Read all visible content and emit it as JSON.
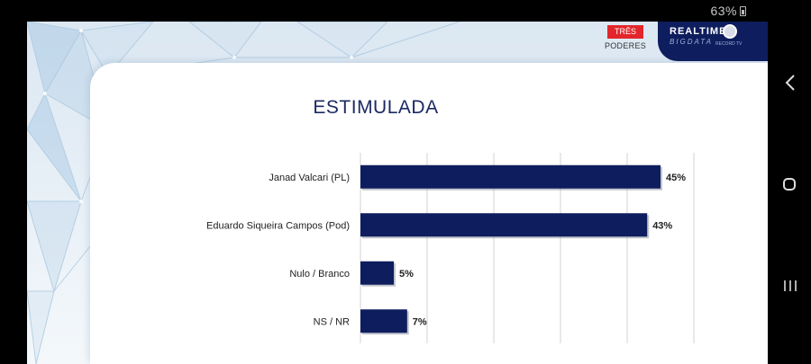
{
  "status_bar": {
    "battery_text": "63%"
  },
  "logos": {
    "tres_poderes_top": "TRÊS",
    "tres_poderes_bottom": "PODERES",
    "realtime_top": "REALTIME",
    "realtime_bottom": "BIGDATA",
    "realtime_small": "RECORD TV"
  },
  "chart_data": {
    "type": "bar",
    "orientation": "horizontal",
    "title": "ESTIMULADA",
    "categories": [
      "Janad Valcari (PL)",
      "Eduardo Siqueira Campos (Pod)",
      "Nulo / Branco",
      "NS / NR"
    ],
    "values": [
      45,
      43,
      5,
      7
    ],
    "data_labels": [
      "45%",
      "43%",
      "5%",
      "7%"
    ],
    "xlim": [
      0,
      50
    ],
    "grid": true,
    "colors": {
      "bar": "#0e1d5e",
      "grid": "#d3d3d3",
      "text": "#222222"
    }
  }
}
